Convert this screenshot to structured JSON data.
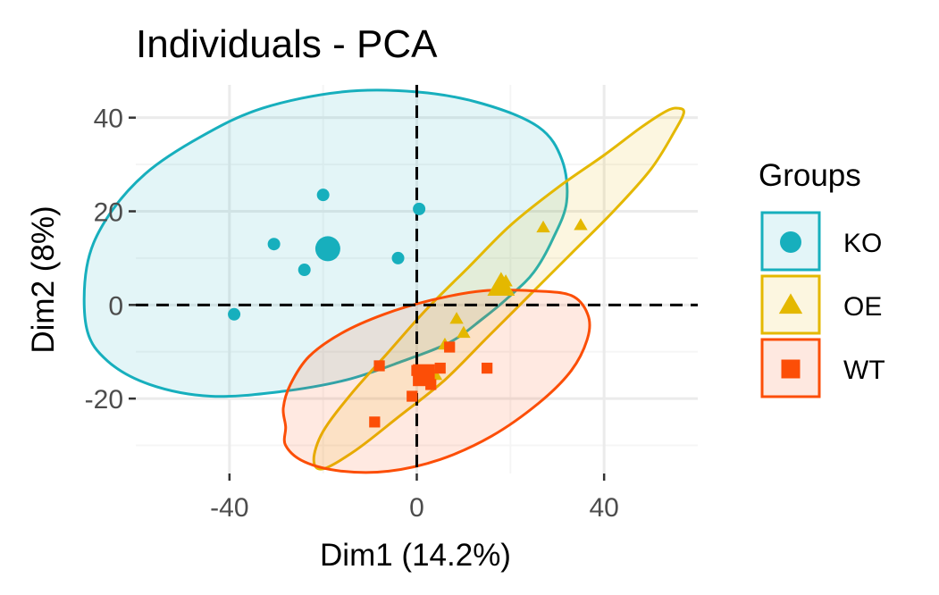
{
  "chart_data": {
    "type": "scatter",
    "title": "Individuals - PCA",
    "xlabel": "Dim1 (14.2%)",
    "ylabel": "Dim2 (8%)",
    "xlim": [
      -60,
      60
    ],
    "ylim": [
      -36,
      47
    ],
    "x_ticks": [
      -40,
      0,
      40
    ],
    "x_tick_labels": [
      "-40",
      "0",
      "40"
    ],
    "y_ticks": [
      -20,
      0,
      20,
      40
    ],
    "y_tick_labels": [
      "-20",
      "0",
      "20",
      "40"
    ],
    "grid": true,
    "reference_lines": {
      "x": 0,
      "y": 0,
      "style": "dashed"
    },
    "legend": {
      "title": "Groups",
      "position": "right"
    },
    "series": [
      {
        "name": "KO",
        "shape": "circle",
        "color": "#17AFBD",
        "fill": "#E3F5F8",
        "points": [
          {
            "x": -20,
            "y": 23.5
          },
          {
            "x": 0.5,
            "y": 20.5
          },
          {
            "x": -30.5,
            "y": 13
          },
          {
            "x": -24,
            "y": 7.5
          },
          {
            "x": -4,
            "y": 10
          },
          {
            "x": -39,
            "y": -2
          }
        ],
        "centroid": {
          "x": -19,
          "y": 12
        },
        "ellipse": [
          [
            -70.5,
            -5
          ],
          [
            -70.5,
            8
          ],
          [
            -66.5,
            18
          ],
          [
            -58,
            28
          ],
          [
            -46,
            36
          ],
          [
            -33,
            42
          ],
          [
            -16,
            45.5
          ],
          [
            0,
            45.5
          ],
          [
            14,
            43
          ],
          [
            26,
            38
          ],
          [
            31,
            31
          ],
          [
            32,
            22
          ],
          [
            29,
            14
          ],
          [
            25,
            7
          ],
          [
            20,
            2
          ],
          [
            14,
            -3
          ],
          [
            7,
            -8
          ],
          [
            -3,
            -12
          ],
          [
            -15,
            -16
          ],
          [
            -29,
            -18.5
          ],
          [
            -44,
            -19.5
          ],
          [
            -57,
            -17
          ],
          [
            -66,
            -12
          ]
        ]
      },
      {
        "name": "OE",
        "shape": "triangle",
        "color": "#E4B800",
        "fill": "#FCF6E0",
        "points": [
          {
            "x": 27,
            "y": 16.5
          },
          {
            "x": 35,
            "y": 17
          },
          {
            "x": 19,
            "y": 5
          },
          {
            "x": 17,
            "y": 3
          },
          {
            "x": 8.5,
            "y": -3
          },
          {
            "x": 10,
            "y": -6
          },
          {
            "x": 6,
            "y": -8.5
          },
          {
            "x": 4,
            "y": -15
          }
        ],
        "centroid": {
          "x": 18,
          "y": 4
        },
        "ellipse": [
          [
            56,
            42
          ],
          [
            53.5,
            41.5
          ],
          [
            48,
            38
          ],
          [
            40,
            32
          ],
          [
            30,
            25
          ],
          [
            20,
            17
          ],
          [
            11,
            8
          ],
          [
            2,
            -1
          ],
          [
            -6,
            -10
          ],
          [
            -14,
            -19
          ],
          [
            -20,
            -27
          ],
          [
            -22,
            -33
          ],
          [
            -20,
            -35
          ],
          [
            -13,
            -31
          ],
          [
            -4,
            -24
          ],
          [
            6,
            -16
          ],
          [
            15,
            -7
          ],
          [
            24,
            2
          ],
          [
            33,
            11
          ],
          [
            42,
            20
          ],
          [
            50,
            29
          ],
          [
            55,
            37
          ],
          [
            57,
            41
          ]
        ]
      },
      {
        "name": "WT",
        "shape": "square",
        "color": "#FC4E07",
        "fill": "#FEE8E0",
        "points": [
          {
            "x": -8,
            "y": -13
          },
          {
            "x": 15,
            "y": -13.5
          },
          {
            "x": 7,
            "y": -9
          },
          {
            "x": 5,
            "y": -13.5
          },
          {
            "x": 0,
            "y": -14
          },
          {
            "x": 3,
            "y": -17
          },
          {
            "x": -1,
            "y": -19.5
          },
          {
            "x": -9,
            "y": -25
          }
        ],
        "centroid": {
          "x": 1.5,
          "y": -15
        },
        "ellipse": [
          [
            -28,
            -26
          ],
          [
            -28,
            -30
          ],
          [
            -24,
            -33.5
          ],
          [
            -16,
            -35.5
          ],
          [
            -6,
            -35.5
          ],
          [
            5,
            -33
          ],
          [
            16,
            -28
          ],
          [
            26,
            -21
          ],
          [
            33,
            -14
          ],
          [
            36.5,
            -7
          ],
          [
            36.5,
            -2
          ],
          [
            33,
            2
          ],
          [
            25,
            3
          ],
          [
            14,
            3
          ],
          [
            3,
            1
          ],
          [
            -7,
            -2
          ],
          [
            -16,
            -6
          ],
          [
            -23,
            -11
          ],
          [
            -27,
            -17
          ],
          [
            -28.5,
            -22
          ]
        ]
      }
    ]
  },
  "colors": {
    "panel_bg": "#FFFFFF",
    "grid_major": "#EBEBEB",
    "grid_minor": "#F5F5F5",
    "tick_text": "#4D4D4D",
    "axis_line": "#000000"
  }
}
